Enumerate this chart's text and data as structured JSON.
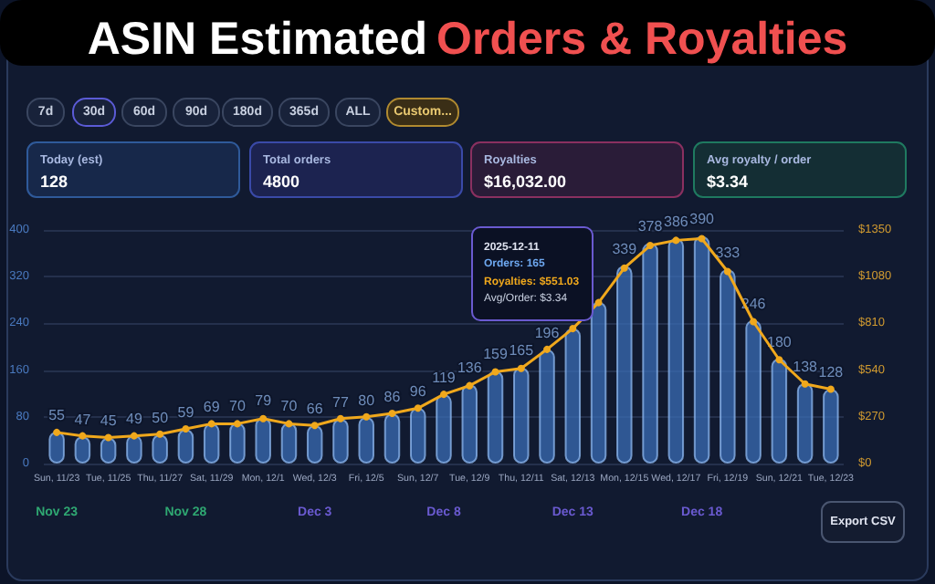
{
  "chart_data": {
    "type": "bar",
    "title": "ASIN Estimated Orders & Royalties",
    "categories": [
      "Sun, 11/23",
      null,
      "Tue, 11/25",
      null,
      "Thu, 11/27",
      null,
      "Sat, 11/29",
      null,
      "Mon, 12/1",
      null,
      "Wed, 12/3",
      null,
      "Fri, 12/5",
      null,
      "Sun, 12/7",
      null,
      "Tue, 12/9",
      null,
      "Thu, 12/11",
      null,
      "Sat, 12/13",
      null,
      "Mon, 12/15",
      null,
      "Wed, 12/17",
      null,
      "Fri, 12/19",
      null,
      "Sun, 12/21",
      null,
      "Tue, 12/23"
    ],
    "series": [
      {
        "color": "#3a6cb4",
        "values": [
          55,
          47,
          45,
          49,
          50,
          59,
          69,
          70,
          79,
          70,
          66,
          77,
          80,
          86,
          96,
          119,
          136,
          159,
          165,
          196,
          232,
          277,
          339,
          378,
          386,
          390,
          333,
          246,
          180,
          138,
          128
        ],
        "value_labels": [
          "55",
          "47",
          "45",
          "49",
          "50",
          "59",
          "69",
          "70",
          "79",
          "70",
          "66",
          "77",
          "80",
          "86",
          "96",
          "119",
          "136",
          "159",
          "165",
          "196",
          null,
          null,
          "339",
          "378",
          "386",
          "390",
          "333",
          "246",
          "180",
          "138",
          "128"
        ]
      },
      {
        "type": "line",
        "axis": "y2",
        "color": "#f0a81c",
        "values": [
          180,
          160,
          150,
          160,
          170,
          200,
          230,
          230,
          260,
          230,
          220,
          260,
          270,
          290,
          320,
          400,
          450,
          530,
          550,
          660,
          780,
          930,
          1130,
          1260,
          1290,
          1300,
          1110,
          820,
          600,
          460,
          430
        ]
      }
    ],
    "ylim": [
      0,
      400
    ],
    "yticks": [
      0,
      80,
      160,
      240,
      320,
      400
    ],
    "y2lim": [
      0,
      1350
    ],
    "y2ticks": [
      {
        "value": 0,
        "label": "$0"
      },
      {
        "value": 270,
        "label": "$270"
      },
      {
        "value": 540,
        "label": "$540"
      },
      {
        "value": 810,
        "label": "$810"
      },
      {
        "value": 1080,
        "label": "$1080"
      },
      {
        "value": 1350,
        "label": "$1350"
      }
    ],
    "grid": "y",
    "marker": "circle",
    "annotations": [
      "7d",
      "30d",
      "60d",
      "90d",
      "180d",
      "365d",
      "ALL",
      "Custom...",
      "Today (est)",
      "128",
      "Total orders",
      "4800",
      "Royalties",
      "$16,032.00",
      "Avg royalty / order",
      "$3.34",
      "2025-12-11",
      "Orders: 165",
      "Royalties: $551.03",
      "Avg/Order: $3.34",
      "Nov 23",
      "Nov 28",
      "Dec 3",
      "Dec 8",
      "Dec 13",
      "Dec 18",
      "Export CSV"
    ]
  }
}
